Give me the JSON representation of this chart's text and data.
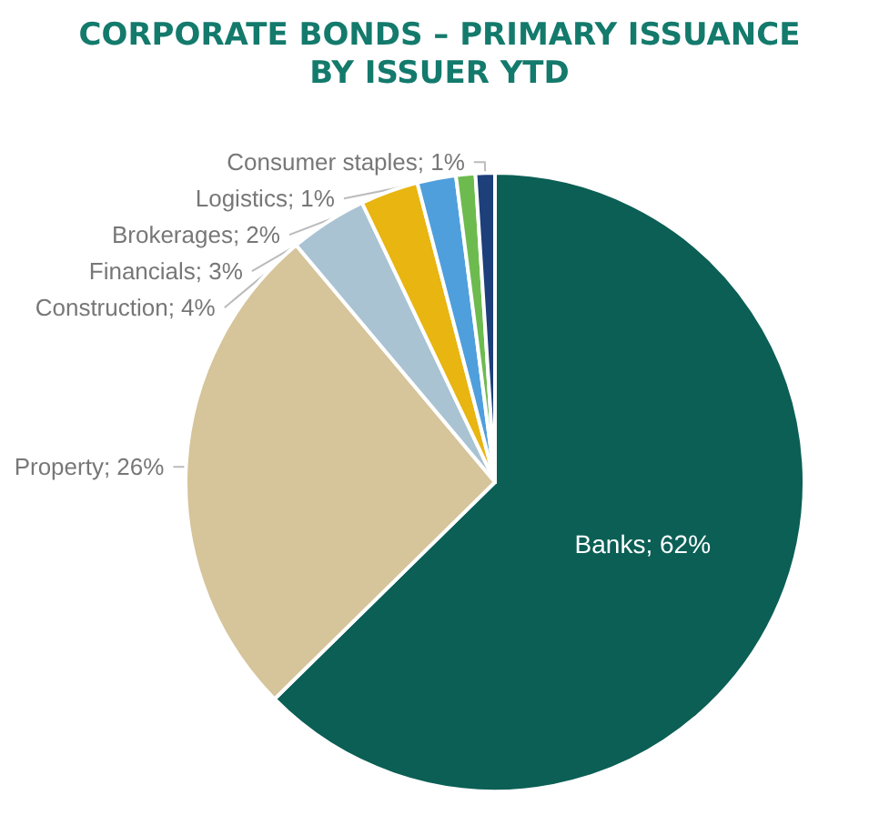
{
  "chart_data": {
    "type": "pie",
    "title": "CORPORATE BONDS – PRIMARY ISSUANCE\nBY ISSUER YTD",
    "categories": [
      "Banks",
      "Property",
      "Construction",
      "Financials",
      "Brokerages",
      "Logistics",
      "Consumer staples"
    ],
    "values": [
      62,
      26,
      4,
      3,
      2,
      1,
      1
    ],
    "colors": [
      "#0b5f55",
      "#d6c49a",
      "#a9c3d3",
      "#e8b511",
      "#4f9fdc",
      "#6dbb4f",
      "#1d3f7a"
    ],
    "value_labels": [
      "62%",
      "26%",
      "4%",
      "3%",
      "2%",
      "1%",
      "1%"
    ],
    "legend": false
  }
}
